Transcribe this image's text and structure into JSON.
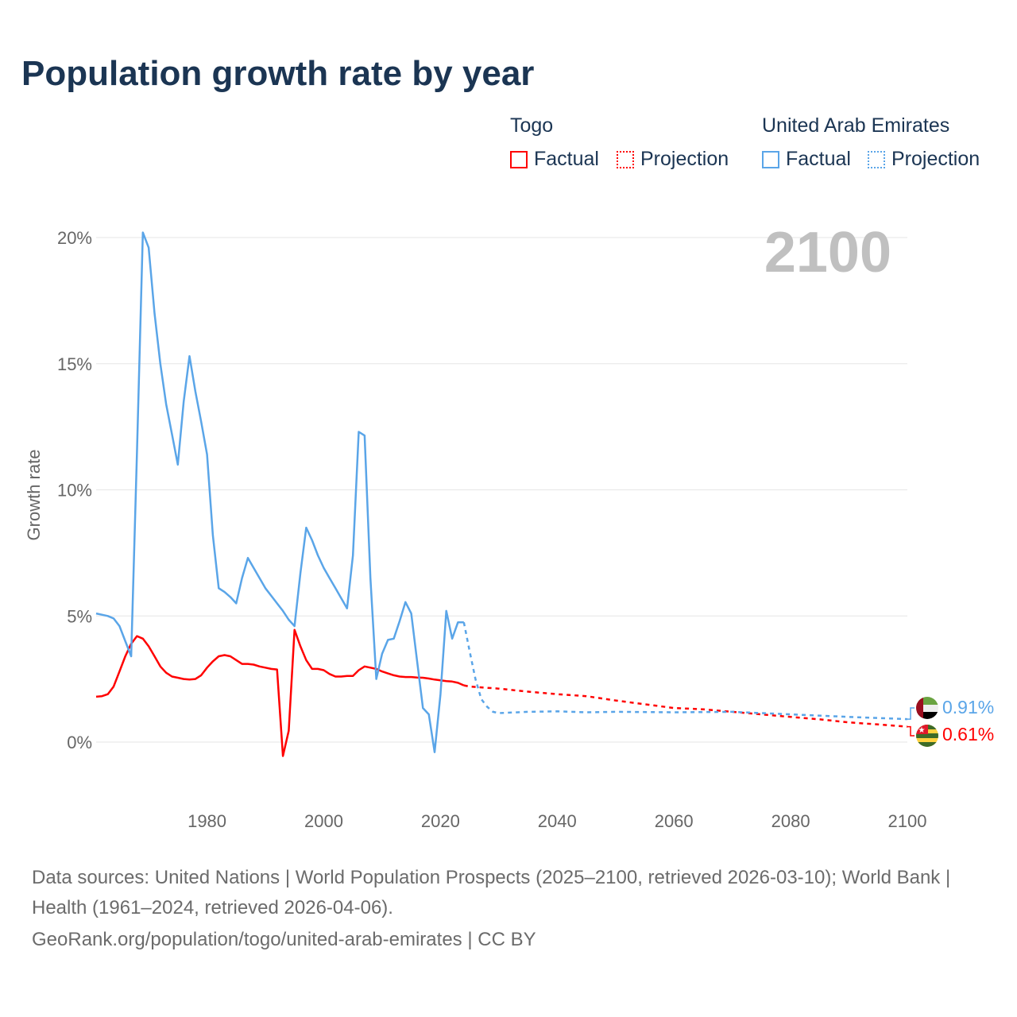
{
  "title": "Population growth rate by year",
  "legend": {
    "groups": [
      {
        "name": "Togo",
        "factual": "Factual",
        "projection": "Projection",
        "color": "#ff0000"
      },
      {
        "name": "United Arab Emirates",
        "factual": "Factual",
        "projection": "Projection",
        "color": "#5aa5e8"
      }
    ]
  },
  "year_label": "2100",
  "end_labels": {
    "uae": "0.91%",
    "togo": "0.61%"
  },
  "footer": {
    "sources": "Data sources: United Nations | World Population Prospects (2025–2100, retrieved 2026-03-10); World Bank | Health (1961–2024, retrieved 2026-04-06).",
    "url": "GeoRank.org/population/togo/united-arab-emirates | CC BY"
  },
  "chart_data": {
    "type": "line",
    "title": "Population growth rate by year",
    "xlabel": "",
    "ylabel": "Growth rate",
    "xlim": [
      1961,
      2100
    ],
    "ylim": [
      -2.3,
      20.5
    ],
    "x_ticks": [
      1980,
      2000,
      2020,
      2040,
      2060,
      2080,
      2100
    ],
    "y_ticks": [
      0,
      5,
      10,
      15,
      20
    ],
    "y_tick_labels": [
      "0%",
      "5%",
      "10%",
      "15%",
      "20%"
    ],
    "grid": true,
    "legend_position": "top-right",
    "series": [
      {
        "name": "Togo Factual",
        "color": "#ff0000",
        "dashed": false,
        "x": [
          1961,
          1962,
          1963,
          1964,
          1965,
          1966,
          1967,
          1968,
          1969,
          1970,
          1971,
          1972,
          1973,
          1974,
          1975,
          1976,
          1977,
          1978,
          1979,
          1980,
          1981,
          1982,
          1983,
          1984,
          1985,
          1986,
          1987,
          1988,
          1989,
          1990,
          1991,
          1992,
          1993,
          1994,
          1995,
          1996,
          1997,
          1998,
          1999,
          2000,
          2001,
          2002,
          2003,
          2004,
          2005,
          2006,
          2007,
          2008,
          2009,
          2010,
          2011,
          2012,
          2013,
          2014,
          2015,
          2016,
          2017,
          2018,
          2019,
          2020,
          2021,
          2022,
          2023,
          2024
        ],
        "y": [
          1.8,
          1.82,
          1.9,
          2.2,
          2.8,
          3.4,
          3.9,
          4.2,
          4.1,
          3.8,
          3.4,
          3.0,
          2.75,
          2.6,
          2.55,
          2.5,
          2.48,
          2.5,
          2.65,
          2.95,
          3.2,
          3.4,
          3.45,
          3.4,
          3.25,
          3.1,
          3.1,
          3.07,
          3.0,
          2.95,
          2.9,
          2.88,
          -0.55,
          0.45,
          4.45,
          3.8,
          3.25,
          2.9,
          2.9,
          2.85,
          2.7,
          2.6,
          2.6,
          2.62,
          2.62,
          2.85,
          3.0,
          2.95,
          2.9,
          2.8,
          2.72,
          2.65,
          2.6,
          2.58,
          2.58,
          2.56,
          2.55,
          2.52,
          2.48,
          2.45,
          2.42,
          2.4,
          2.35,
          2.25
        ]
      },
      {
        "name": "Togo Projection",
        "color": "#ff0000",
        "dashed": true,
        "x": [
          2024,
          2025,
          2030,
          2035,
          2040,
          2045,
          2050,
          2055,
          2060,
          2065,
          2070,
          2075,
          2080,
          2085,
          2090,
          2095,
          2100
        ],
        "y": [
          2.25,
          2.2,
          2.12,
          2.0,
          1.9,
          1.82,
          1.65,
          1.5,
          1.35,
          1.3,
          1.2,
          1.1,
          1.0,
          0.9,
          0.78,
          0.7,
          0.61
        ]
      },
      {
        "name": "United Arab Emirates Factual",
        "color": "#5aa5e8",
        "dashed": false,
        "x": [
          1961,
          1962,
          1963,
          1964,
          1965,
          1966,
          1967,
          1968,
          1969,
          1970,
          1971,
          1972,
          1973,
          1974,
          1975,
          1976,
          1977,
          1978,
          1979,
          1980,
          1981,
          1982,
          1983,
          1984,
          1985,
          1986,
          1987,
          1988,
          1989,
          1990,
          1991,
          1992,
          1993,
          1994,
          1995,
          1996,
          1997,
          1998,
          1999,
          2000,
          2001,
          2002,
          2003,
          2004,
          2005,
          2006,
          2007,
          2008,
          2009,
          2010,
          2011,
          2012,
          2013,
          2014,
          2015,
          2016,
          2017,
          2018,
          2019,
          2020,
          2021,
          2022,
          2023,
          2024
        ],
        "y": [
          5.1,
          5.05,
          5.0,
          4.9,
          4.6,
          4.0,
          3.4,
          11.5,
          20.2,
          19.6,
          17.0,
          15.0,
          13.4,
          12.2,
          11.0,
          13.5,
          15.3,
          13.9,
          12.7,
          11.4,
          8.2,
          6.1,
          5.95,
          5.75,
          5.5,
          6.5,
          7.3,
          6.9,
          6.5,
          6.1,
          5.8,
          5.5,
          5.2,
          4.85,
          4.6,
          6.7,
          8.5,
          8.0,
          7.4,
          6.9,
          6.5,
          6.1,
          5.7,
          5.3,
          7.4,
          12.3,
          12.15,
          6.5,
          2.5,
          3.5,
          4.05,
          4.1,
          4.8,
          5.55,
          5.1,
          3.2,
          1.35,
          1.1,
          -0.4,
          1.9,
          5.2,
          4.1,
          4.75,
          4.75
        ]
      },
      {
        "name": "United Arab Emirates Projection",
        "color": "#5aa5e8",
        "dashed": true,
        "x": [
          2024,
          2025,
          2026,
          2027,
          2028,
          2029,
          2030,
          2035,
          2040,
          2045,
          2050,
          2060,
          2070,
          2080,
          2090,
          2100
        ],
        "y": [
          4.75,
          3.6,
          2.5,
          1.7,
          1.4,
          1.2,
          1.15,
          1.2,
          1.22,
          1.18,
          1.2,
          1.18,
          1.2,
          1.1,
          1.0,
          0.91
        ]
      }
    ]
  }
}
